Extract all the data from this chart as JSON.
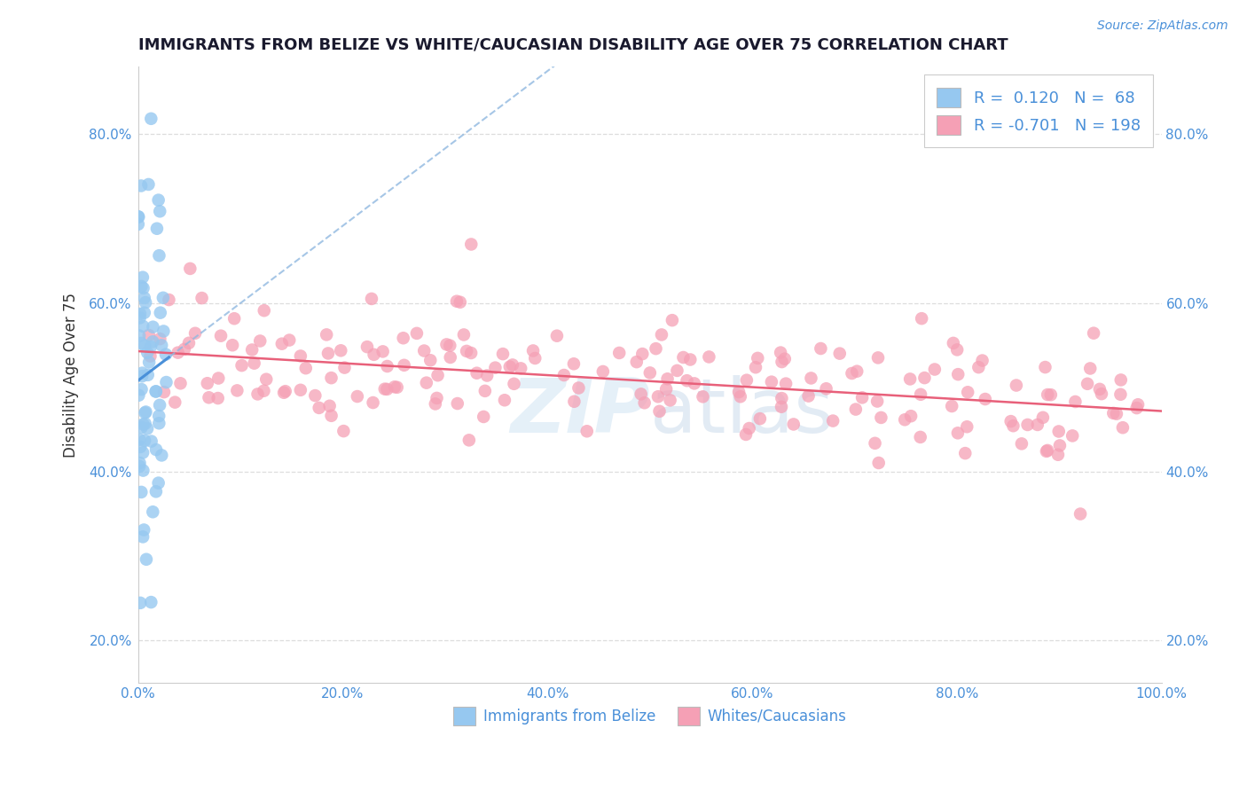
{
  "title": "IMMIGRANTS FROM BELIZE VS WHITE/CAUCASIAN DISABILITY AGE OVER 75 CORRELATION CHART",
  "source": "Source: ZipAtlas.com",
  "ylabel": "Disability Age Over 75",
  "xlim": [
    0,
    100
  ],
  "ylim": [
    15,
    88
  ],
  "xtick_labels": [
    "0.0%",
    "20.0%",
    "40.0%",
    "60.0%",
    "80.0%",
    "100.0%"
  ],
  "xtick_vals": [
    0,
    20,
    40,
    60,
    80,
    100
  ],
  "ytick_labels": [
    "20.0%",
    "40.0%",
    "60.0%",
    "80.0%"
  ],
  "ytick_vals": [
    20,
    40,
    60,
    80
  ],
  "blue_R": 0.12,
  "blue_N": 68,
  "pink_R": -0.701,
  "pink_N": 198,
  "blue_color": "#96C8F0",
  "pink_color": "#F5A0B5",
  "blue_line_color": "#4a90d9",
  "blue_dash_color": "#90b8e0",
  "pink_line_color": "#e8607a",
  "legend_label_blue": "Immigrants from Belize",
  "legend_label_pink": "Whites/Caucasians",
  "watermark_zip": "ZIP",
  "watermark_atlas": "atlas",
  "background_color": "#ffffff",
  "grid_color": "#dddddd",
  "title_color": "#1a1a2e",
  "axis_label_color": "#333333",
  "tick_color": "#4a90d9",
  "source_color": "#4a90d9",
  "legend_text_color": "#4a90d9"
}
